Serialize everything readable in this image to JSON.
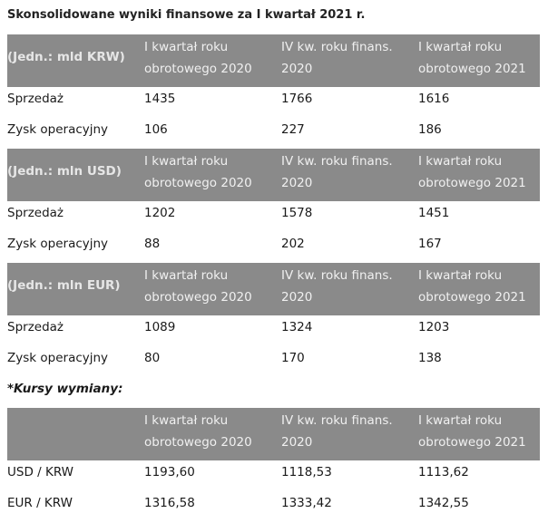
{
  "title": "Skonsolidowane wyniki finansowe za I kwartał 2021 r.",
  "col_headers": {
    "q1_2020": [
      "I kwartał roku",
      "obrotowego 2020"
    ],
    "q4_2020": [
      "IV kw. roku finans.",
      "2020"
    ],
    "q1_2021": [
      "I kwartał roku",
      "obrotowego 2021"
    ]
  },
  "sections": [
    {
      "unit": "(Jedn.: mld KRW)",
      "rows": [
        {
          "label": "Sprzedaż",
          "values": [
            "1435",
            "1766",
            "1616"
          ]
        },
        {
          "label": "Zysk operacyjny",
          "values": [
            "106",
            "227",
            "186"
          ]
        }
      ]
    },
    {
      "unit": "(Jedn.: mln USD)",
      "rows": [
        {
          "label": "Sprzedaż",
          "values": [
            "1202",
            "1578",
            "1451"
          ]
        },
        {
          "label": "Zysk operacyjny",
          "values": [
            "88",
            "202",
            "167"
          ]
        }
      ]
    },
    {
      "unit": "(Jedn.: mln EUR)",
      "rows": [
        {
          "label": "Sprzedaż",
          "values": [
            "1089",
            "1324",
            "1203"
          ]
        },
        {
          "label": "Zysk operacyjny",
          "values": [
            "80",
            "170",
            "138"
          ]
        }
      ]
    }
  ],
  "exchange_note": "*Kursy wymiany:",
  "exchange": {
    "unit": "",
    "rows": [
      {
        "label": "USD / KRW",
        "values": [
          "1193,60",
          "1118,53",
          "1113,62"
        ]
      },
      {
        "label": "EUR / KRW",
        "values": [
          "1316,58",
          "1333,42",
          "1342,55"
        ]
      }
    ]
  },
  "colors": {
    "header_bg": "#8a8a8a",
    "header_text": "#f0f0f0",
    "body_text": "#1a1a1a"
  }
}
